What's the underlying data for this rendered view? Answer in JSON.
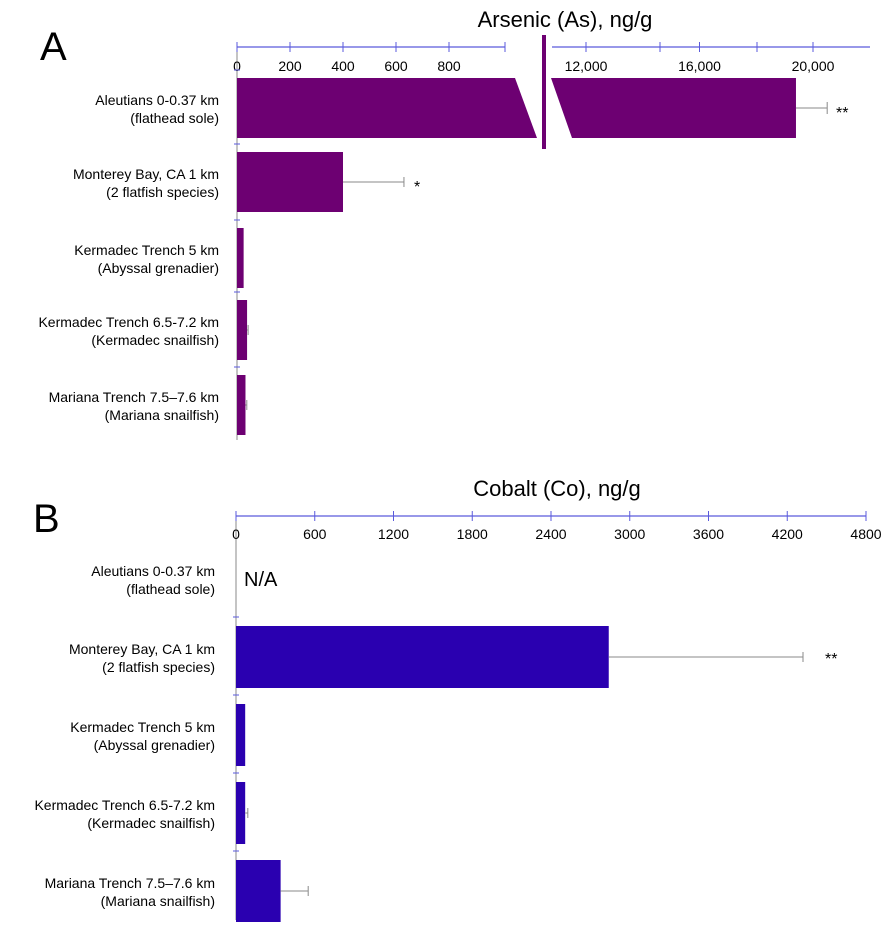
{
  "chart_data": [
    {
      "panel": "A",
      "type": "bar",
      "orientation": "horizontal",
      "title": "Arsenic (As), ng/g",
      "broken_axis": true,
      "segments": [
        {
          "range": [
            0,
            940
          ],
          "ticks": [
            0,
            200,
            400,
            600,
            800
          ],
          "tick_labels": [
            "0",
            "200",
            "400",
            "600",
            "800"
          ]
        },
        {
          "range": [
            10500,
            22000
          ],
          "ticks": [
            12000,
            16000,
            20000
          ],
          "tick_labels": [
            "12,000",
            "16,000",
            "20,000"
          ]
        }
      ],
      "color": "#6d0072",
      "categories": [
        {
          "line1": "Aleutians 0-0.37 km",
          "line2": "(flathead sole)"
        },
        {
          "line1": "Monterey Bay, CA  1 km",
          "line2": "(2 flatfish species)"
        },
        {
          "line1": "Kermadec Trench 5 km",
          "line2": "(Abyssal grenadier)"
        },
        {
          "line1": "Kermadec Trench 6.5-7.2 km",
          "line2": "(Kermadec snailfish)"
        },
        {
          "line1": "Mariana Trench 7.5–7.6 km",
          "line2": "(Mariana snailfish)"
        }
      ],
      "values": [
        19400,
        400,
        25,
        38,
        32
      ],
      "errors": [
        1100,
        230,
        0,
        4,
        5
      ],
      "significance": [
        "**",
        "*",
        "",
        "",
        ""
      ]
    },
    {
      "panel": "B",
      "type": "bar",
      "orientation": "horizontal",
      "title": "Cobalt (Co), ng/g",
      "xlim": [
        0,
        4800
      ],
      "ticks": [
        0,
        600,
        1200,
        1800,
        2400,
        3000,
        3600,
        4200,
        4800
      ],
      "tick_labels": [
        "0",
        "600",
        "1200",
        "1800",
        "2400",
        "3000",
        "3600",
        "4200",
        "4800"
      ],
      "color": "#2a00b0",
      "categories": [
        {
          "line1": "Aleutians 0-0.37 km",
          "line2": "(flathead sole)"
        },
        {
          "line1": "Monterey Bay, CA  1 km",
          "line2": "(2 flatfish species)"
        },
        {
          "line1": "Kermadec Trench 5 km",
          "line2": "(Abyssal grenadier)"
        },
        {
          "line1": "Kermadec Trench 6.5-7.2 km",
          "line2": "(Kermadec snailfish)"
        },
        {
          "line1": "Mariana Trench 7.5–7.6 km",
          "line2": "(Mariana snailfish)"
        }
      ],
      "values": [
        null,
        2840,
        70,
        70,
        340
      ],
      "errors": [
        null,
        1480,
        0,
        20,
        210
      ],
      "significance": [
        "",
        "**",
        "",
        "",
        ""
      ],
      "missing_label": "N/A"
    }
  ]
}
